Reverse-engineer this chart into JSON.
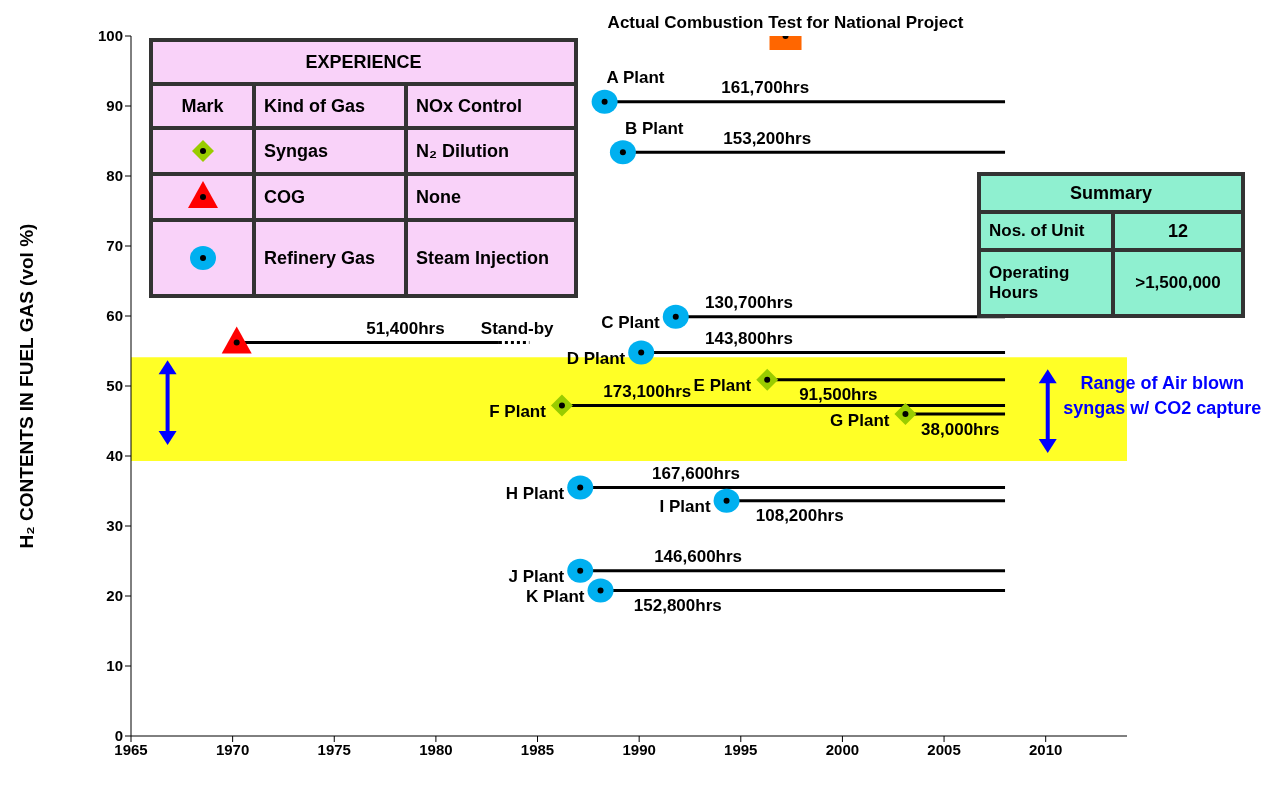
{
  "chart_data": [
    {
      "type": "line",
      "ylabel": "H₂ CONTENTS IN FUEL GAS (vol %)",
      "xlim": [
        1965,
        2014
      ],
      "xticks": [
        1965,
        1970,
        1975,
        1980,
        1985,
        1990,
        1995,
        2000,
        2005,
        2010
      ],
      "ylim": [
        0,
        100
      ],
      "yticks": [
        0,
        10,
        20,
        30,
        40,
        50,
        60,
        70,
        80,
        90,
        100
      ],
      "series": [
        {
          "type": "line",
          "name": "A Plant",
          "color": "#000000",
          "x": [
            1988.3,
            2008
          ],
          "values": [
            90.6,
            90.6
          ]
        },
        {
          "type": "line",
          "name": "B Plant",
          "color": "#000000",
          "x": [
            1989.2,
            2008
          ],
          "values": [
            83.4,
            83.4
          ]
        },
        {
          "type": "line",
          "name": "C Plant",
          "color": "#000000",
          "x": [
            1991.8,
            2008
          ],
          "values": [
            59.9,
            59.9
          ]
        },
        {
          "type": "line",
          "name": "D Plant",
          "color": "#000000",
          "x": [
            1990.1,
            2008
          ],
          "values": [
            54.8,
            54.8
          ]
        },
        {
          "type": "line",
          "name": "E Plant",
          "color": "#000000",
          "x": [
            1996.3,
            2008
          ],
          "values": [
            50.9,
            50.9
          ]
        },
        {
          "type": "line",
          "name": "F Plant",
          "color": "#000000",
          "x": [
            1986.2,
            2008
          ],
          "values": [
            47.2,
            47.2
          ]
        },
        {
          "type": "line",
          "name": "G Plant",
          "color": "#000000",
          "x": [
            2003.1,
            2008
          ],
          "values": [
            46.0,
            46.0
          ]
        },
        {
          "type": "line",
          "name": "H Plant",
          "color": "#000000",
          "x": [
            1987.1,
            2008
          ],
          "values": [
            35.5,
            35.5
          ]
        },
        {
          "type": "line",
          "name": "I Plant",
          "color": "#000000",
          "x": [
            1994.3,
            2008
          ],
          "values": [
            33.6,
            33.6
          ]
        },
        {
          "type": "line",
          "name": "J Plant",
          "color": "#000000",
          "x": [
            1987.1,
            2008
          ],
          "values": [
            23.6,
            23.6
          ]
        },
        {
          "type": "line",
          "name": "K Plant",
          "color": "#000000",
          "x": [
            1988.1,
            2008
          ],
          "values": [
            20.8,
            20.8
          ]
        },
        {
          "type": "line",
          "color": "#000000",
          "x": [
            1970.2,
            1983.1
          ],
          "values": [
            56.2,
            56.2
          ]
        },
        {
          "type": "line",
          "color": "#000000",
          "line_style": "dotted",
          "x": [
            1983.1,
            1984.6
          ],
          "values": [
            56.2,
            56.2
          ]
        },
        {
          "type": "scatter",
          "color": "#99cc00",
          "marker": "diamond",
          "x": [
            1996.3,
            1986.2,
            2003.1
          ],
          "values": [
            50.9,
            47.2,
            46.0
          ]
        },
        {
          "type": "scatter",
          "color": "#ff0000",
          "marker": "triangle",
          "x": [
            1970.2
          ],
          "values": [
            56.2
          ]
        },
        {
          "type": "scatter",
          "color": "#00b0f0",
          "marker": "circle",
          "x": [
            1988.3,
            1989.2,
            1991.8,
            1990.1,
            1987.1,
            1994.3,
            1987.1,
            1988.1
          ],
          "values": [
            90.6,
            83.4,
            59.9,
            54.8,
            35.5,
            33.6,
            23.6,
            20.8
          ]
        },
        {
          "type": "scatter",
          "color": "#ff6600",
          "marker": "square",
          "x": [
            1997.2
          ],
          "values": [
            100
          ]
        }
      ],
      "bands": [
        {
          "axis": "y",
          "from": 39.3,
          "to": 54.1,
          "color": "#ffff00",
          "label": "Range of Air blown syngas w/ CO2 capture"
        }
      ],
      "annotations": [
        {
          "text": "Actual Combustion Test for National Project",
          "x": 1997.2,
          "y": 100
        },
        {
          "text": "161,700hrs",
          "x": 1996.2,
          "y": 90.6
        },
        {
          "text": "153,200hrs",
          "x": 1996.3,
          "y": 83.4
        },
        {
          "text": "130,700hrs",
          "x": 1995.4,
          "y": 59.9
        },
        {
          "text": "143,800hrs",
          "x": 1995.4,
          "y": 54.8
        },
        {
          "text": "91,500hrs",
          "x": 1999.8,
          "y": 50.9
        },
        {
          "text": "173,100hrs",
          "x": 1990.4,
          "y": 47.2
        },
        {
          "text": "38,000hrs",
          "x": 2005.8,
          "y": 46.0
        },
        {
          "text": "167,600hrs",
          "x": 1992.8,
          "y": 35.5
        },
        {
          "text": "108,200hrs",
          "x": 1997.9,
          "y": 33.6
        },
        {
          "text": "146,600hrs",
          "x": 1992.9,
          "y": 23.6
        },
        {
          "text": "152,800hrs",
          "x": 1991.9,
          "y": 20.8
        },
        {
          "text": "51,400hrs",
          "x": 1978.5,
          "y": 56.2
        },
        {
          "text": "Stand-by",
          "x": 1984.0,
          "y": 56.2
        }
      ]
    },
    {
      "type": "other",
      "title": "EXPERIENCE",
      "annotations": [
        "Mark",
        "Kind of Gas",
        "NOx Control",
        "Syngas",
        "N₂ Dilution",
        "COG",
        "None",
        "Refinery Gas",
        "Steam Injection"
      ]
    },
    {
      "type": "other",
      "title": "Summary",
      "annotations": [
        "Nos. of Unit",
        "12",
        "Operating Hours",
        ">1,500,000"
      ]
    }
  ]
}
